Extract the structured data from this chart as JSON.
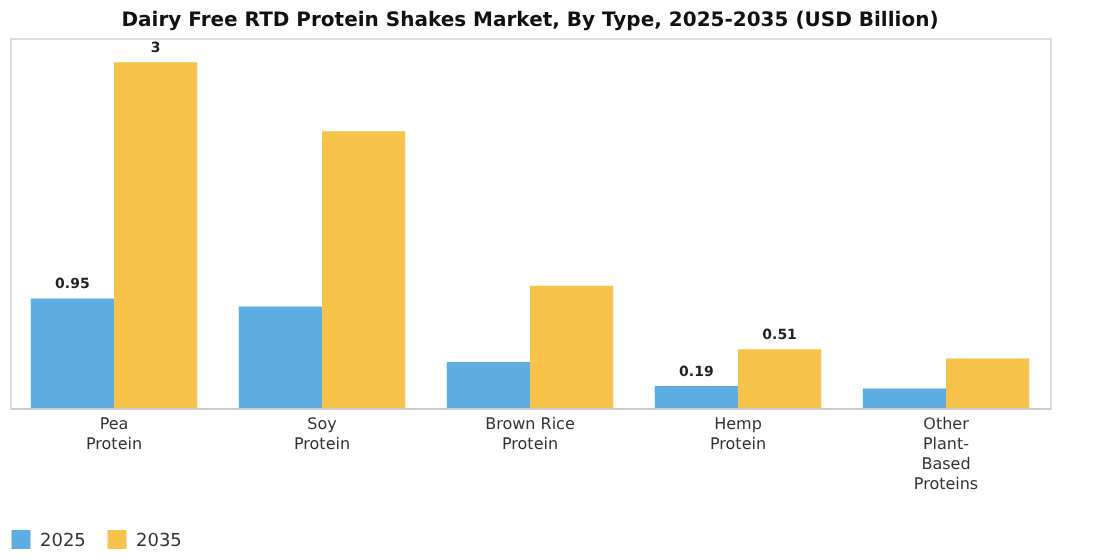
{
  "chart_data": {
    "type": "bar",
    "title": "Dairy Free RTD Protein Shakes Market, By Type, 2025-2035 (USD Billion)",
    "categories": [
      "Pea Protein",
      "Soy Protein",
      "Brown Rice Protein",
      "Hemp Protein",
      "Other Plant-Based Proteins"
    ],
    "series": [
      {
        "name": "2025",
        "color": "#5dade2",
        "values": [
          0.95,
          0.88,
          0.4,
          0.19,
          0.17
        ],
        "value_labels": [
          "0.95",
          null,
          null,
          "0.19",
          null
        ]
      },
      {
        "name": "2035",
        "color": "#f7c24a",
        "values": [
          3,
          2.4,
          1.06,
          0.51,
          0.43
        ],
        "value_labels": [
          "3",
          null,
          null,
          "0.51",
          null
        ]
      }
    ],
    "legend": "bottom"
  }
}
